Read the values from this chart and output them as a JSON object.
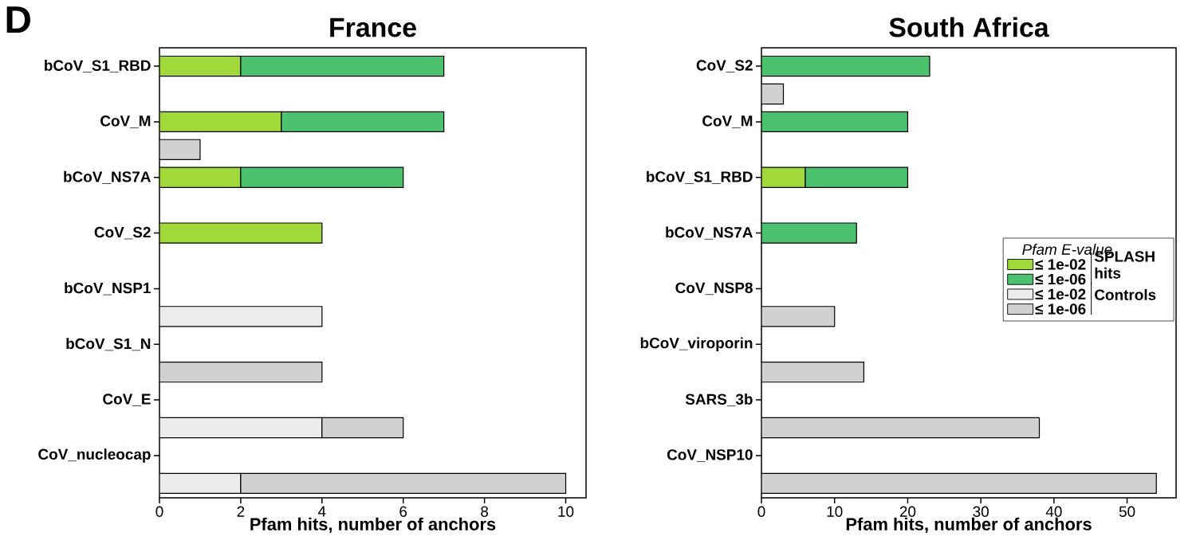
{
  "chart_data": [
    {
      "type": "bar",
      "title": "France",
      "orientation": "horizontal",
      "stacked": true,
      "xlabel": "Pfam hits, number of anchors",
      "annotations": [
        "D"
      ],
      "categories": [
        "bCoV_S1_RBD",
        null,
        "CoV_M",
        null,
        "bCoV_NS7A",
        null,
        "CoV_S2",
        null,
        "bCoV_NSP1",
        null,
        "bCoV_S1_N",
        null,
        "CoV_E",
        null,
        "CoV_nucleocap",
        null
      ],
      "xlim": [
        0,
        10.5
      ],
      "xticks": [
        0,
        2,
        4,
        6,
        8,
        10
      ],
      "series": [
        {
          "color": "#a1d93b",
          "values": [
            2,
            null,
            3,
            null,
            2,
            null,
            4,
            null,
            null,
            null,
            null,
            null,
            null,
            null,
            null,
            null
          ]
        },
        {
          "color": "#4cc26e",
          "values": [
            5,
            null,
            4,
            null,
            4,
            null,
            null,
            null,
            null,
            null,
            null,
            null,
            null,
            null,
            null,
            null
          ]
        },
        {
          "color": "#ececec",
          "values": [
            null,
            null,
            null,
            null,
            null,
            null,
            null,
            null,
            null,
            4,
            null,
            null,
            null,
            4,
            null,
            2
          ]
        },
        {
          "color": "#d1d1d1",
          "values": [
            null,
            null,
            null,
            1,
            null,
            null,
            null,
            null,
            null,
            null,
            null,
            4,
            null,
            2,
            null,
            8
          ]
        }
      ]
    },
    {
      "type": "bar",
      "title": "South Africa",
      "orientation": "horizontal",
      "stacked": true,
      "xlabel": "Pfam hits, number of anchors",
      "legend": "right",
      "legend_title": "Pfam E-value",
      "annotations": [
        "SPLASH hits",
        "Controls"
      ],
      "categories": [
        "CoV_S2",
        null,
        "CoV_M",
        null,
        "bCoV_S1_RBD",
        null,
        "bCoV_NS7A",
        null,
        "CoV_NSP8",
        null,
        "bCoV_viroporin",
        null,
        "SARS_3b",
        null,
        "CoV_NSP10",
        null
      ],
      "xlim": [
        0,
        56.7
      ],
      "xticks": [
        0,
        10,
        20,
        30,
        40,
        50
      ],
      "series": [
        {
          "name": "≤ 1e-02",
          "color": "#a1d93b",
          "values": [
            null,
            null,
            null,
            null,
            6,
            null,
            null,
            null,
            null,
            null,
            null,
            null,
            null,
            null,
            null,
            null
          ]
        },
        {
          "name": "≤ 1e-06",
          "color": "#4cc26e",
          "values": [
            23,
            null,
            20,
            null,
            14,
            null,
            13,
            null,
            null,
            null,
            null,
            null,
            null,
            null,
            null,
            null
          ]
        },
        {
          "name": "≤ 1e-02",
          "color": "#ececec",
          "values": [
            null,
            null,
            null,
            null,
            null,
            null,
            null,
            null,
            null,
            null,
            null,
            null,
            null,
            null,
            null,
            null
          ]
        },
        {
          "name": "≤ 1e-06",
          "color": "#d1d1d1",
          "values": [
            null,
            3,
            null,
            null,
            null,
            null,
            null,
            null,
            null,
            10,
            null,
            14,
            null,
            38,
            null,
            54
          ]
        }
      ]
    }
  ]
}
